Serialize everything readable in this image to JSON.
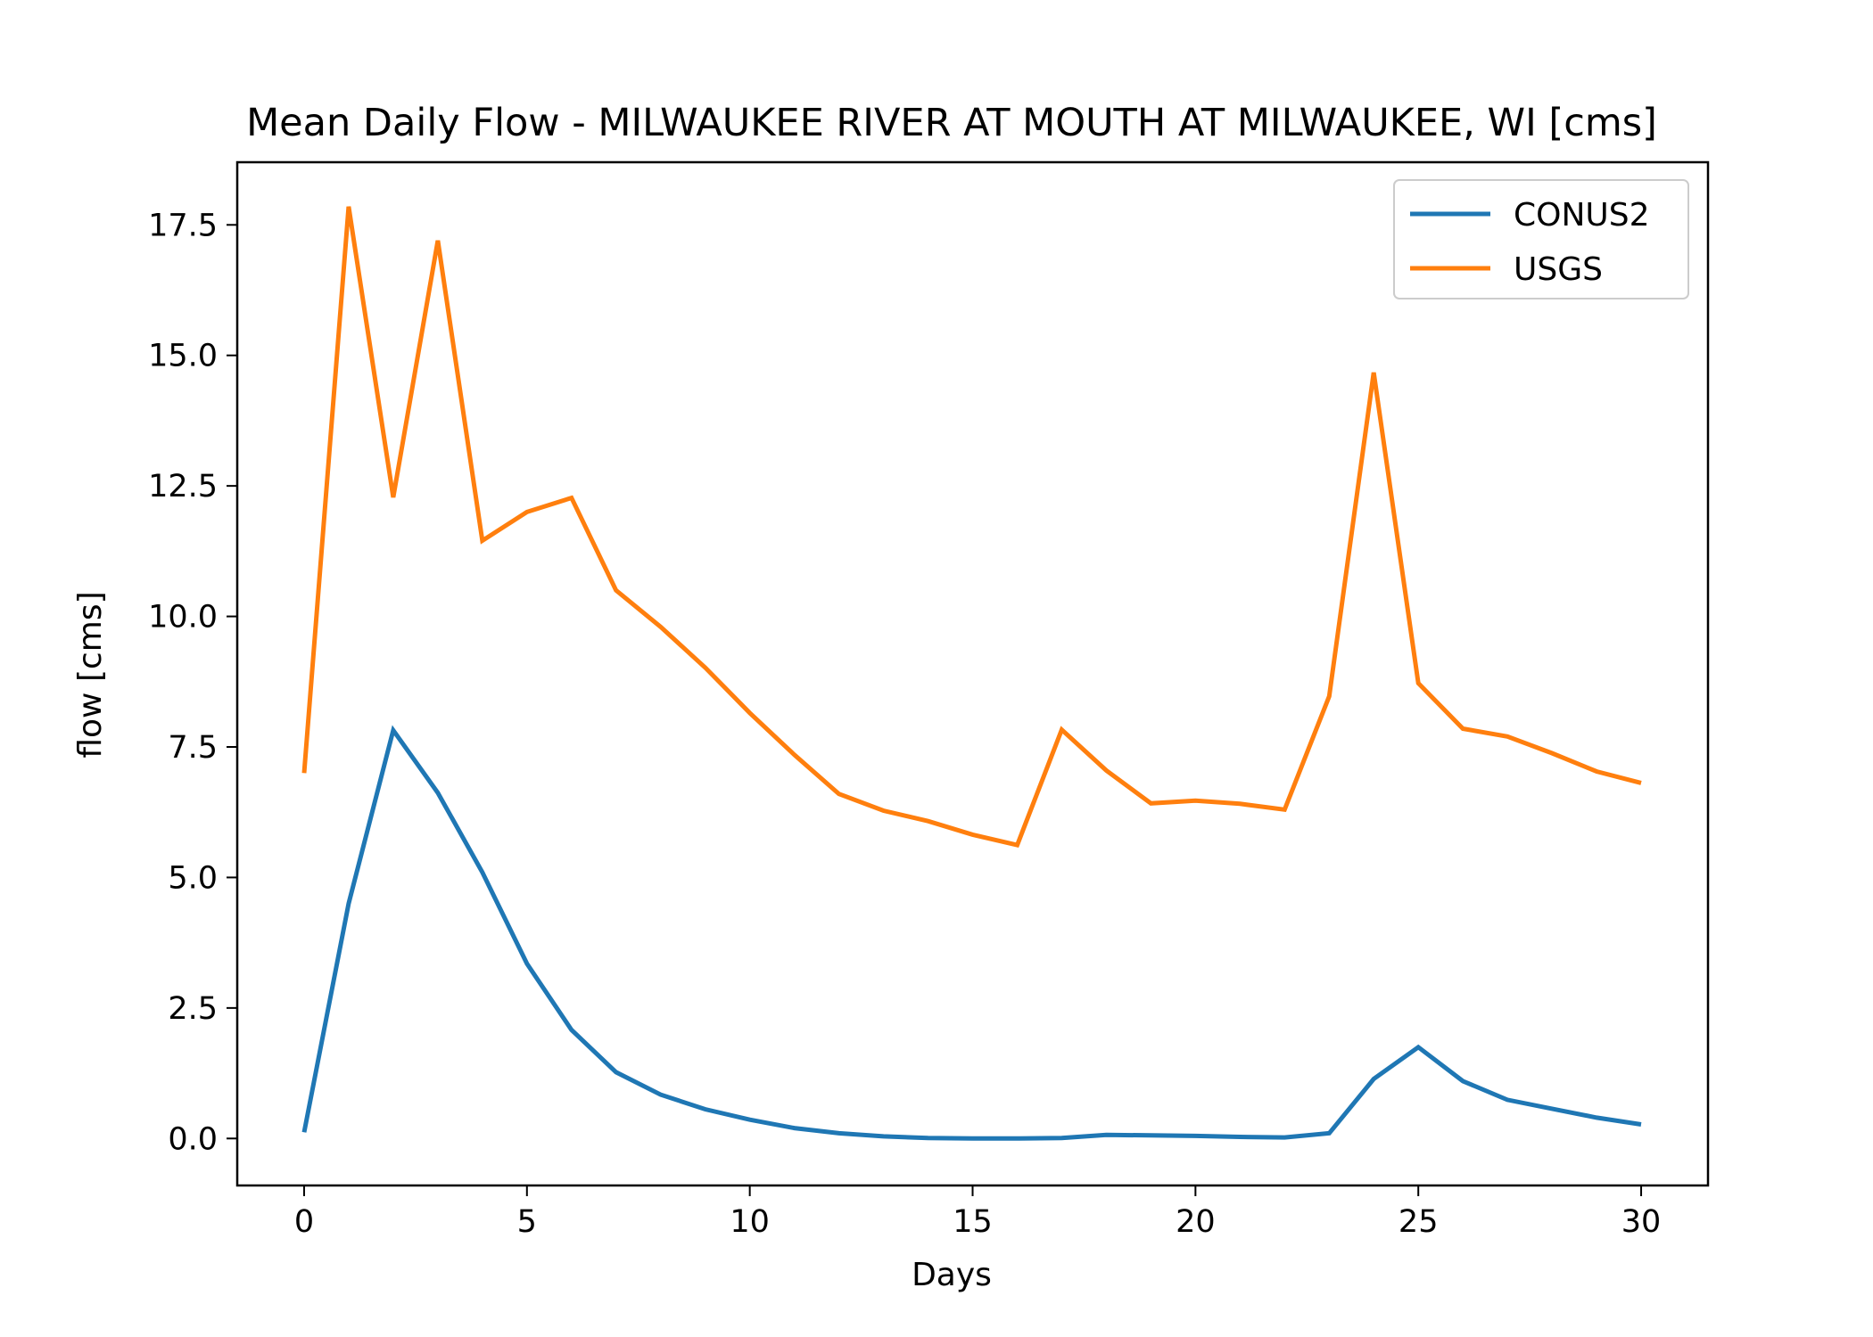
{
  "chart_data": {
    "type": "line",
    "title": "Mean Daily Flow - MILWAUKEE RIVER AT MOUTH AT MILWAUKEE, WI [cms]",
    "xlabel": "Days",
    "ylabel": "flow [cms]",
    "xlim": [
      -1.5,
      31.5
    ],
    "ylim": [
      -0.9,
      18.7
    ],
    "xticks": [
      0,
      5,
      10,
      15,
      20,
      25,
      30
    ],
    "xtick_labels": [
      "0",
      "5",
      "10",
      "15",
      "20",
      "25",
      "30"
    ],
    "yticks": [
      0.0,
      2.5,
      5.0,
      7.5,
      10.0,
      12.5,
      15.0,
      17.5
    ],
    "ytick_labels": [
      "0.0",
      "2.5",
      "5.0",
      "7.5",
      "10.0",
      "12.5",
      "15.0",
      "17.5"
    ],
    "grid": false,
    "legend_position": "top-right",
    "x": [
      0,
      1,
      2,
      3,
      4,
      5,
      6,
      7,
      8,
      9,
      10,
      11,
      12,
      13,
      14,
      15,
      16,
      17,
      18,
      19,
      20,
      21,
      22,
      23,
      24,
      25,
      26,
      27,
      28,
      29,
      30
    ],
    "series": [
      {
        "name": "CONUS2",
        "color": "#1f77b4",
        "values": [
          0.12,
          4.5,
          7.82,
          6.62,
          5.1,
          3.35,
          2.08,
          1.27,
          0.84,
          0.56,
          0.36,
          0.2,
          0.1,
          0.04,
          0.01,
          0.0,
          0.0,
          0.01,
          0.07,
          0.06,
          0.05,
          0.03,
          0.02,
          0.1,
          1.14,
          1.75,
          1.1,
          0.74,
          0.57,
          0.4,
          0.27
        ]
      },
      {
        "name": "USGS",
        "color": "#ff7f0e",
        "values": [
          7.0,
          17.85,
          12.28,
          17.2,
          11.45,
          12.0,
          12.27,
          10.5,
          9.8,
          9.02,
          8.15,
          7.35,
          6.6,
          6.28,
          6.08,
          5.82,
          5.62,
          7.83,
          7.05,
          6.42,
          6.47,
          6.41,
          6.3,
          8.47,
          14.67,
          8.72,
          7.85,
          7.7,
          7.38,
          7.03,
          6.81
        ]
      }
    ]
  }
}
